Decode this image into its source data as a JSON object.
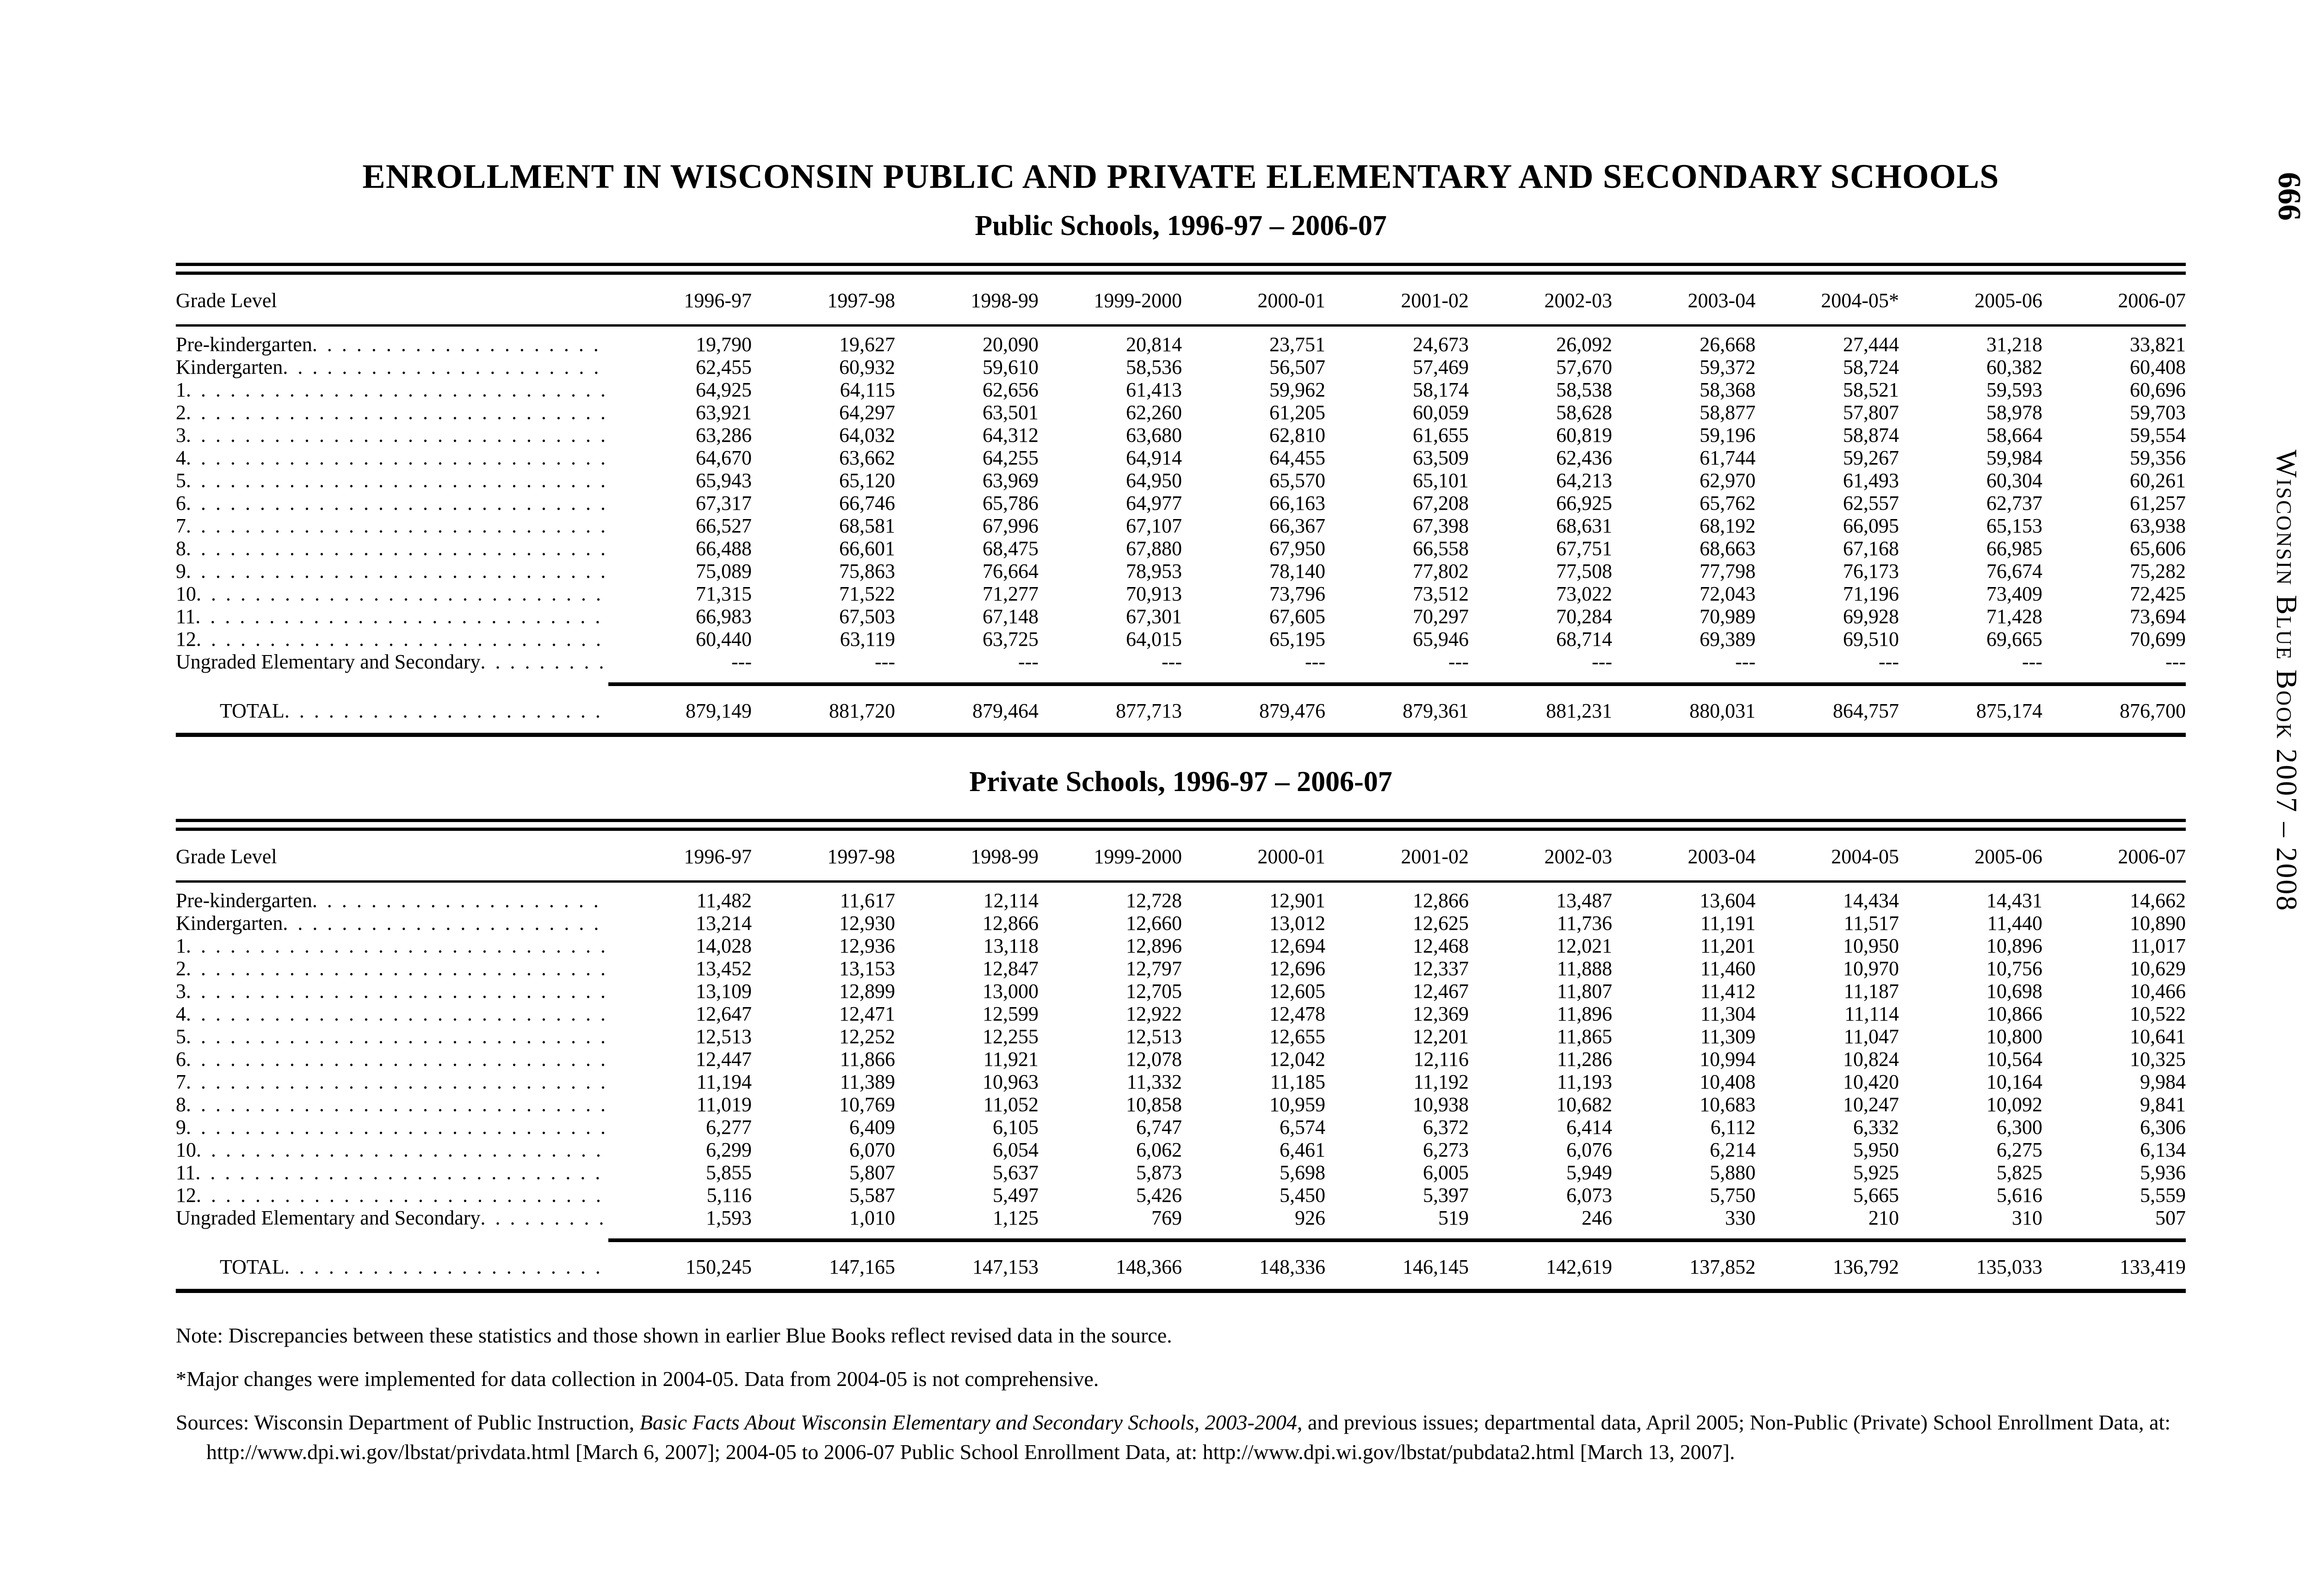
{
  "page": {
    "title": "ENROLLMENT IN WISCONSIN PUBLIC AND PRIVATE ELEMENTARY AND SECONDARY SCHOOLS",
    "page_number": "666",
    "margin_title": "Wisconsin Blue Book 2007 – 2008"
  },
  "public_table": {
    "subtitle": "Public Schools, 1996-97 – 2006-07",
    "columns": [
      "Grade Level",
      "1996-97",
      "1997-98",
      "1998-99",
      "1999-2000",
      "2000-01",
      "2001-02",
      "2002-03",
      "2003-04",
      "2004-05*",
      "2005-06",
      "2006-07"
    ],
    "rows": [
      {
        "label": "Pre-kindergarten",
        "values": [
          "19,790",
          "19,627",
          "20,090",
          "20,814",
          "23,751",
          "24,673",
          "26,092",
          "26,668",
          "27,444",
          "31,218",
          "33,821"
        ]
      },
      {
        "label": "Kindergarten",
        "values": [
          "62,455",
          "60,932",
          "59,610",
          "58,536",
          "56,507",
          "57,469",
          "57,670",
          "59,372",
          "58,724",
          "60,382",
          "60,408"
        ]
      },
      {
        "label": "1",
        "values": [
          "64,925",
          "64,115",
          "62,656",
          "61,413",
          "59,962",
          "58,174",
          "58,538",
          "58,368",
          "58,521",
          "59,593",
          "60,696"
        ]
      },
      {
        "label": "2",
        "values": [
          "63,921",
          "64,297",
          "63,501",
          "62,260",
          "61,205",
          "60,059",
          "58,628",
          "58,877",
          "57,807",
          "58,978",
          "59,703"
        ]
      },
      {
        "label": "3",
        "values": [
          "63,286",
          "64,032",
          "64,312",
          "63,680",
          "62,810",
          "61,655",
          "60,819",
          "59,196",
          "58,874",
          "58,664",
          "59,554"
        ]
      },
      {
        "label": "4",
        "values": [
          "64,670",
          "63,662",
          "64,255",
          "64,914",
          "64,455",
          "63,509",
          "62,436",
          "61,744",
          "59,267",
          "59,984",
          "59,356"
        ]
      },
      {
        "label": "5",
        "values": [
          "65,943",
          "65,120",
          "63,969",
          "64,950",
          "65,570",
          "65,101",
          "64,213",
          "62,970",
          "61,493",
          "60,304",
          "60,261"
        ]
      },
      {
        "label": "6",
        "values": [
          "67,317",
          "66,746",
          "65,786",
          "64,977",
          "66,163",
          "67,208",
          "66,925",
          "65,762",
          "62,557",
          "62,737",
          "61,257"
        ]
      },
      {
        "label": "7",
        "values": [
          "66,527",
          "68,581",
          "67,996",
          "67,107",
          "66,367",
          "67,398",
          "68,631",
          "68,192",
          "66,095",
          "65,153",
          "63,938"
        ]
      },
      {
        "label": "8",
        "values": [
          "66,488",
          "66,601",
          "68,475",
          "67,880",
          "67,950",
          "66,558",
          "67,751",
          "68,663",
          "67,168",
          "66,985",
          "65,606"
        ]
      },
      {
        "label": "9",
        "values": [
          "75,089",
          "75,863",
          "76,664",
          "78,953",
          "78,140",
          "77,802",
          "77,508",
          "77,798",
          "76,173",
          "76,674",
          "75,282"
        ]
      },
      {
        "label": "10",
        "values": [
          "71,315",
          "71,522",
          "71,277",
          "70,913",
          "73,796",
          "73,512",
          "73,022",
          "72,043",
          "71,196",
          "73,409",
          "72,425"
        ]
      },
      {
        "label": "11",
        "values": [
          "66,983",
          "67,503",
          "67,148",
          "67,301",
          "67,605",
          "70,297",
          "70,284",
          "70,989",
          "69,928",
          "71,428",
          "73,694"
        ]
      },
      {
        "label": "12",
        "values": [
          "60,440",
          "63,119",
          "63,725",
          "64,015",
          "65,195",
          "65,946",
          "68,714",
          "69,389",
          "69,510",
          "69,665",
          "70,699"
        ]
      },
      {
        "label": "Ungraded Elementary and Secondary",
        "values": [
          "---",
          "---",
          "---",
          "---",
          "---",
          "---",
          "---",
          "---",
          "---",
          "---",
          "---"
        ]
      }
    ],
    "total_label": "TOTAL",
    "total": [
      "879,149",
      "881,720",
      "879,464",
      "877,713",
      "879,476",
      "879,361",
      "881,231",
      "880,031",
      "864,757",
      "875,174",
      "876,700"
    ]
  },
  "private_table": {
    "subtitle": "Private Schools, 1996-97 – 2006-07",
    "columns": [
      "Grade Level",
      "1996-97",
      "1997-98",
      "1998-99",
      "1999-2000",
      "2000-01",
      "2001-02",
      "2002-03",
      "2003-04",
      "2004-05",
      "2005-06",
      "2006-07"
    ],
    "rows": [
      {
        "label": "Pre-kindergarten",
        "values": [
          "11,482",
          "11,617",
          "12,114",
          "12,728",
          "12,901",
          "12,866",
          "13,487",
          "13,604",
          "14,434",
          "14,431",
          "14,662"
        ]
      },
      {
        "label": "Kindergarten",
        "values": [
          "13,214",
          "12,930",
          "12,866",
          "12,660",
          "13,012",
          "12,625",
          "11,736",
          "11,191",
          "11,517",
          "11,440",
          "10,890"
        ]
      },
      {
        "label": "1",
        "values": [
          "14,028",
          "12,936",
          "13,118",
          "12,896",
          "12,694",
          "12,468",
          "12,021",
          "11,201",
          "10,950",
          "10,896",
          "11,017"
        ]
      },
      {
        "label": "2",
        "values": [
          "13,452",
          "13,153",
          "12,847",
          "12,797",
          "12,696",
          "12,337",
          "11,888",
          "11,460",
          "10,970",
          "10,756",
          "10,629"
        ]
      },
      {
        "label": "3",
        "values": [
          "13,109",
          "12,899",
          "13,000",
          "12,705",
          "12,605",
          "12,467",
          "11,807",
          "11,412",
          "11,187",
          "10,698",
          "10,466"
        ]
      },
      {
        "label": "4",
        "values": [
          "12,647",
          "12,471",
          "12,599",
          "12,922",
          "12,478",
          "12,369",
          "11,896",
          "11,304",
          "11,114",
          "10,866",
          "10,522"
        ]
      },
      {
        "label": "5",
        "values": [
          "12,513",
          "12,252",
          "12,255",
          "12,513",
          "12,655",
          "12,201",
          "11,865",
          "11,309",
          "11,047",
          "10,800",
          "10,641"
        ]
      },
      {
        "label": "6",
        "values": [
          "12,447",
          "11,866",
          "11,921",
          "12,078",
          "12,042",
          "12,116",
          "11,286",
          "10,994",
          "10,824",
          "10,564",
          "10,325"
        ]
      },
      {
        "label": "7",
        "values": [
          "11,194",
          "11,389",
          "10,963",
          "11,332",
          "11,185",
          "11,192",
          "11,193",
          "10,408",
          "10,420",
          "10,164",
          "9,984"
        ]
      },
      {
        "label": "8",
        "values": [
          "11,019",
          "10,769",
          "11,052",
          "10,858",
          "10,959",
          "10,938",
          "10,682",
          "10,683",
          "10,247",
          "10,092",
          "9,841"
        ]
      },
      {
        "label": "9",
        "values": [
          "6,277",
          "6,409",
          "6,105",
          "6,747",
          "6,574",
          "6,372",
          "6,414",
          "6,112",
          "6,332",
          "6,300",
          "6,306"
        ]
      },
      {
        "label": "10",
        "values": [
          "6,299",
          "6,070",
          "6,054",
          "6,062",
          "6,461",
          "6,273",
          "6,076",
          "6,214",
          "5,950",
          "6,275",
          "6,134"
        ]
      },
      {
        "label": "11",
        "values": [
          "5,855",
          "5,807",
          "5,637",
          "5,873",
          "5,698",
          "6,005",
          "5,949",
          "5,880",
          "5,925",
          "5,825",
          "5,936"
        ]
      },
      {
        "label": "12",
        "values": [
          "5,116",
          "5,587",
          "5,497",
          "5,426",
          "5,450",
          "5,397",
          "6,073",
          "5,750",
          "5,665",
          "5,616",
          "5,559"
        ]
      },
      {
        "label": "Ungraded Elementary and Secondary",
        "values": [
          "1,593",
          "1,010",
          "1,125",
          "769",
          "926",
          "519",
          "246",
          "330",
          "210",
          "310",
          "507"
        ]
      }
    ],
    "total_label": "TOTAL",
    "total": [
      "150,245",
      "147,165",
      "147,153",
      "148,366",
      "148,336",
      "146,145",
      "142,619",
      "137,852",
      "136,792",
      "135,033",
      "133,419"
    ]
  },
  "notes": {
    "note": "Note: Discrepancies between these statistics and those shown in earlier Blue Books reflect revised data in the source.",
    "asterisk_note": "*Major changes were implemented for data collection in 2004-05.  Data from 2004-05 is not comprehensive.",
    "sources_prefix": "Sources: Wisconsin Department of Public Instruction, ",
    "sources_italic": "Basic Facts About Wisconsin Elementary and Secondary Schools, 2003-2004",
    "sources_suffix": ", and previous issues; departmental data, April 2005; Non-Public (Private) School Enrollment Data, at: http://www.dpi.wi.gov/lbstat/privdata.html [March 6, 2007]; 2004-05 to 2006-07 Public School Enrollment Data, at: http://www.dpi.wi.gov/lbstat/pubdata2.html [March 13, 2007]."
  }
}
